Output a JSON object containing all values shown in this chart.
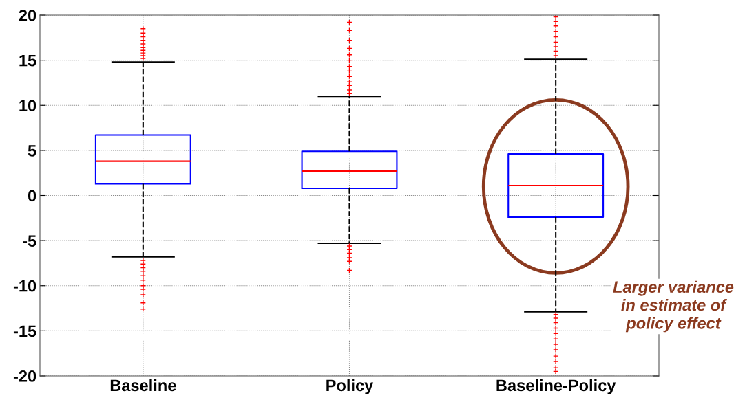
{
  "chart_data": {
    "type": "box",
    "categories": [
      "Baseline",
      "Policy",
      "Baseline-Policy"
    ],
    "boxes": [
      {
        "low": -6.8,
        "q1": 1.3,
        "median": 3.8,
        "q3": 6.7,
        "high": 14.8,
        "outliers": [
          15.2,
          15.5,
          15.8,
          16.1,
          16.4,
          16.8,
          17.2,
          17.6,
          18.0,
          18.5,
          -7.2,
          -7.6,
          -8.0,
          -8.4,
          -8.9,
          -9.4,
          -10.0,
          -10.4,
          -11.0,
          -11.9,
          -12.6
        ]
      },
      {
        "low": -5.3,
        "q1": 0.8,
        "median": 2.7,
        "q3": 4.9,
        "high": 11.0,
        "outliers": [
          11.3,
          11.7,
          12.2,
          12.6,
          13.2,
          13.8,
          14.3,
          15.0,
          15.6,
          16.3,
          17.2,
          18.3,
          19.2,
          -5.6,
          -6.0,
          -6.4,
          -6.9,
          -7.3,
          -8.3
        ]
      },
      {
        "low": -12.9,
        "q1": -2.4,
        "median": 1.1,
        "q3": 4.6,
        "high": 15.1,
        "outliers": [
          15.5,
          16.0,
          16.5,
          17.0,
          17.6,
          18.2,
          18.8,
          19.3,
          19.8,
          -13.2,
          -13.6,
          -14.1,
          -14.7,
          -15.3,
          -15.9,
          -16.5,
          -17.1,
          -17.8,
          -18.4,
          -19.1,
          -19.5
        ]
      }
    ],
    "ylim": [
      -20,
      20
    ],
    "yticks": [
      -20,
      -15,
      -10,
      -5,
      0,
      5,
      10,
      15,
      20
    ],
    "grid": true,
    "annotations": [
      "Larger variance\nin estimate of\npolicy effect"
    ]
  }
}
